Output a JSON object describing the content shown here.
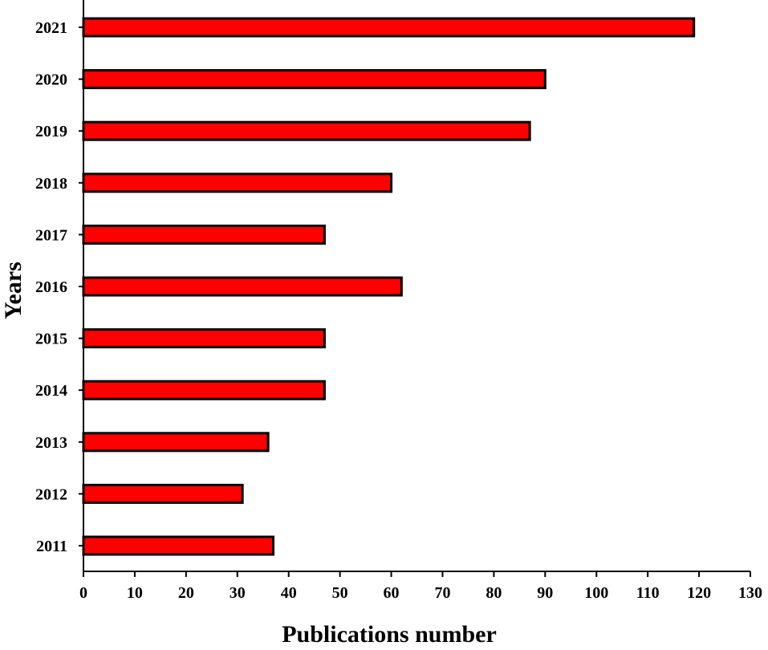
{
  "chart_data": {
    "type": "bar",
    "orientation": "horizontal",
    "categories": [
      "2021",
      "2020",
      "2019",
      "2018",
      "2017",
      "2016",
      "2015",
      "2014",
      "2013",
      "2012",
      "2011"
    ],
    "values": [
      119,
      90,
      87,
      60,
      47,
      62,
      47,
      47,
      36,
      31,
      37
    ],
    "xlabel": "Publications number",
    "ylabel": "Years",
    "xlim": [
      0,
      130
    ],
    "xticks": [
      "0",
      "10",
      "20",
      "30",
      "40",
      "50",
      "60",
      "70",
      "80",
      "90",
      "100",
      "110",
      "120",
      "130"
    ],
    "grid": false,
    "bar_color": "#ff0000",
    "bar_edge_color": "#000000"
  }
}
